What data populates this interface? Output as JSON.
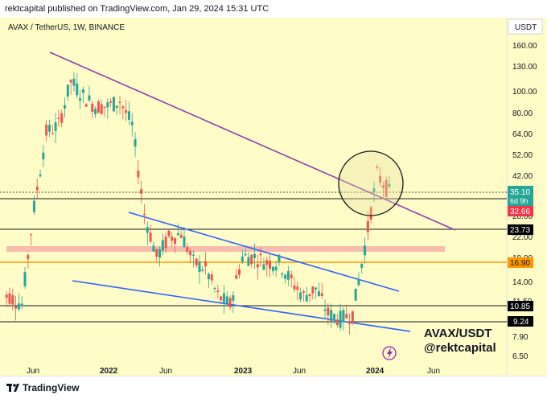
{
  "header": {
    "publisher_text": "rektcapital published on TradingView.com, Jan 29, 2024 15:31 UTC"
  },
  "chart": {
    "symbol_line": "AVAX / TetherUS, 1W, BINANCE",
    "currency_label": "USDT",
    "price_scale": [
      "160.00",
      "130.00",
      "100.00",
      "80.00",
      "64.00",
      "52.00",
      "42.00",
      "28.00",
      "22.00",
      "18.00",
      "14.00",
      "11.50",
      "7.90",
      "6.50"
    ],
    "time_labels": [
      "Jun",
      "2022",
      "Jun",
      "2023",
      "Jun",
      "2024",
      "Jun"
    ],
    "price_badges": {
      "last_price": "35.10",
      "countdown": "6d 9h",
      "resistance": "32.66",
      "level_2373": "23.73",
      "level_1690": "16.90",
      "level_1085": "10.85",
      "level_924": "9.24"
    },
    "watermark_pair": "AVAX/USDT",
    "watermark_handle": "@rektcapital",
    "colors": {
      "background": "#fffcc7",
      "purple_line": "#8e3fb0",
      "blue_line": "#2962ff",
      "green_candle": "#26a69a",
      "red_candle": "#ef5350",
      "badge_green": "#26a69a",
      "badge_red": "#f23645",
      "badge_orange": "#ff9800",
      "badge_black": "#000000"
    },
    "chart_data": {
      "type": "candlestick",
      "title": "AVAX / TetherUS, 1W, BINANCE",
      "ylabel": "USDT",
      "scale": "log",
      "close_series": [
        {
          "x": "2021-06",
          "close": 12
        },
        {
          "x": "2021-07",
          "close": 11
        },
        {
          "x": "2021-08",
          "close": 30
        },
        {
          "x": "2021-09",
          "close": 65
        },
        {
          "x": "2021-10",
          "close": 70
        },
        {
          "x": "2021-11",
          "close": 110
        },
        {
          "x": "2021-12",
          "close": 95
        },
        {
          "x": "2022-01",
          "close": 85
        },
        {
          "x": "2022-02",
          "close": 85
        },
        {
          "x": "2022-03",
          "close": 90
        },
        {
          "x": "2022-04",
          "close": 70
        },
        {
          "x": "2022-05",
          "close": 28
        },
        {
          "x": "2022-06",
          "close": 18
        },
        {
          "x": "2022-07",
          "close": 22
        },
        {
          "x": "2022-08",
          "close": 23
        },
        {
          "x": "2022-09",
          "close": 17
        },
        {
          "x": "2022-10",
          "close": 16
        },
        {
          "x": "2022-11",
          "close": 12
        },
        {
          "x": "2022-12",
          "close": 11
        },
        {
          "x": "2023-01",
          "close": 18
        },
        {
          "x": "2023-02",
          "close": 18
        },
        {
          "x": "2023-03",
          "close": 17
        },
        {
          "x": "2023-04",
          "close": 17
        },
        {
          "x": "2023-05",
          "close": 14
        },
        {
          "x": "2023-06",
          "close": 12
        },
        {
          "x": "2023-07",
          "close": 13
        },
        {
          "x": "2023-08",
          "close": 10
        },
        {
          "x": "2023-09",
          "close": 9.5
        },
        {
          "x": "2023-10",
          "close": 10
        },
        {
          "x": "2023-11",
          "close": 20
        },
        {
          "x": "2023-12",
          "close": 42
        },
        {
          "x": "2024-01",
          "close": 35.1
        }
      ],
      "horizontal_levels": [
        32.66,
        23.73,
        16.9,
        10.85,
        9.24
      ],
      "highlight_zone": [
        19.5,
        20.5
      ]
    }
  },
  "footer": {
    "brand": "TradingView"
  }
}
